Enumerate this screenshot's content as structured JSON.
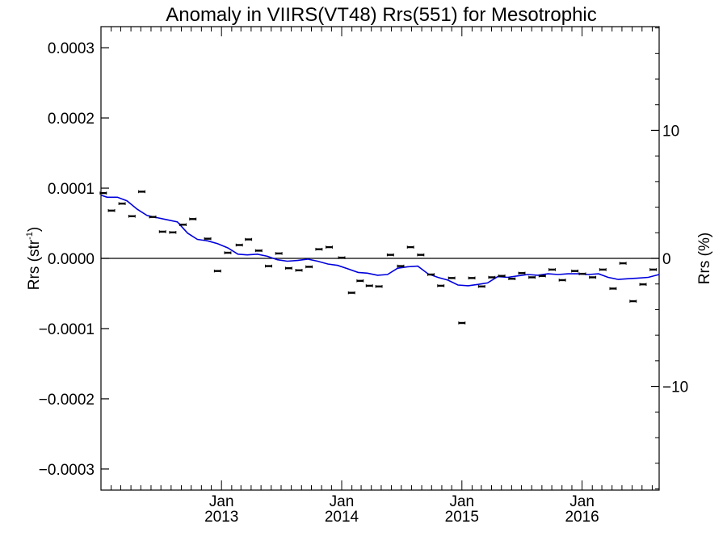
{
  "chart_data": {
    "type": "scatter",
    "title": "Anomaly in VIIRS(VT48) Rrs(551) for Mesotrophic",
    "ylabel": "Rrs (str",
    "ylabel_sup": "-1",
    "ylabel_close": ")",
    "y2label": "Rrs (%)",
    "xlim": [
      "2012-01-01",
      "2016-08-22"
    ],
    "ylim": [
      -0.00033,
      0.00033
    ],
    "y2lim": [
      -18.1,
      18.1
    ],
    "grid": false,
    "yticks": [
      {
        "value": 0.0003,
        "label": "0.0003"
      },
      {
        "value": 0.0002,
        "label": "0.0002"
      },
      {
        "value": 0.0001,
        "label": "0.0001"
      },
      {
        "value": 0.0,
        "label": "0.0000"
      },
      {
        "value": -0.0001,
        "label": "−0.0001"
      },
      {
        "value": -0.0002,
        "label": "−0.0002"
      },
      {
        "value": -0.0003,
        "label": "−0.0003"
      }
    ],
    "y2ticks": [
      {
        "value": 10,
        "label": "10"
      },
      {
        "value": 0,
        "label": "0"
      },
      {
        "value": -10,
        "label": "−10"
      }
    ],
    "xticks": [
      {
        "date": "2013-01-01",
        "month": "Jan",
        "year": "2013"
      },
      {
        "date": "2014-01-01",
        "month": "Jan",
        "year": "2014"
      },
      {
        "date": "2015-01-01",
        "month": "Jan",
        "year": "2015"
      },
      {
        "date": "2016-01-01",
        "month": "Jan",
        "year": "2016"
      }
    ],
    "reference_line": 0.0,
    "series": [
      {
        "type": "points",
        "color": "#000000",
        "points": [
          {
            "x": "2012-01-08",
            "y": 9.3e-05
          },
          {
            "x": "2012-02-02",
            "y": 6.8e-05
          },
          {
            "x": "2012-03-05",
            "y": 7.8e-05
          },
          {
            "x": "2012-04-04",
            "y": 6e-05
          },
          {
            "x": "2012-05-04",
            "y": 9.5e-05
          },
          {
            "x": "2012-06-06",
            "y": 5.9e-05
          },
          {
            "x": "2012-07-06",
            "y": 3.8e-05
          },
          {
            "x": "2012-08-06",
            "y": 3.7e-05
          },
          {
            "x": "2012-09-06",
            "y": 4.8e-05
          },
          {
            "x": "2012-10-06",
            "y": 5.6e-05
          },
          {
            "x": "2012-11-20",
            "y": 2.8e-05
          },
          {
            "x": "2012-12-20",
            "y": -1.8e-05
          },
          {
            "x": "2013-01-20",
            "y": 8e-06
          },
          {
            "x": "2013-02-24",
            "y": 1.9e-05
          },
          {
            "x": "2013-03-24",
            "y": 2.7e-05
          },
          {
            "x": "2013-04-24",
            "y": 1.1e-05
          },
          {
            "x": "2013-05-24",
            "y": -1.1e-05
          },
          {
            "x": "2013-06-24",
            "y": 7e-06
          },
          {
            "x": "2013-07-24",
            "y": -1.4e-05
          },
          {
            "x": "2013-08-24",
            "y": -1.7e-05
          },
          {
            "x": "2013-09-24",
            "y": -1.2e-05
          },
          {
            "x": "2013-10-24",
            "y": 1.3e-05
          },
          {
            "x": "2013-11-24",
            "y": 1.6e-05
          },
          {
            "x": "2014-01-01",
            "y": 1e-06
          },
          {
            "x": "2014-01-31",
            "y": -4.9e-05
          },
          {
            "x": "2014-02-26",
            "y": -3.2e-05
          },
          {
            "x": "2014-03-26",
            "y": -3.9e-05
          },
          {
            "x": "2014-04-24",
            "y": -4e-05
          },
          {
            "x": "2014-05-29",
            "y": 5e-06
          },
          {
            "x": "2014-06-29",
            "y": -1.1e-05
          },
          {
            "x": "2014-07-29",
            "y": 1.6e-05
          },
          {
            "x": "2014-08-29",
            "y": 5e-06
          },
          {
            "x": "2014-09-29",
            "y": -2.3e-05
          },
          {
            "x": "2014-10-29",
            "y": -3.9e-05
          },
          {
            "x": "2014-12-01",
            "y": -2.8e-05
          },
          {
            "x": "2015-01-01",
            "y": -9.2e-05
          },
          {
            "x": "2015-01-31",
            "y": -2.8e-05
          },
          {
            "x": "2015-03-02",
            "y": -4e-05
          },
          {
            "x": "2015-04-02",
            "y": -2.7e-05
          },
          {
            "x": "2015-05-02",
            "y": -2.5e-05
          },
          {
            "x": "2015-06-02",
            "y": -2.9e-05
          },
          {
            "x": "2015-07-02",
            "y": -2.1e-05
          },
          {
            "x": "2015-08-02",
            "y": -2.7e-05
          },
          {
            "x": "2015-09-02",
            "y": -2.5e-05
          },
          {
            "x": "2015-10-02",
            "y": -1.6e-05
          },
          {
            "x": "2015-11-02",
            "y": -3.1e-05
          },
          {
            "x": "2015-12-10",
            "y": -1.8e-05
          },
          {
            "x": "2016-01-02",
            "y": -2.2e-05
          },
          {
            "x": "2016-02-02",
            "y": -2.7e-05
          },
          {
            "x": "2016-03-04",
            "y": -1.6e-05
          },
          {
            "x": "2016-04-04",
            "y": -4.3e-05
          },
          {
            "x": "2016-05-04",
            "y": -7e-06
          },
          {
            "x": "2016-06-04",
            "y": -6.1e-05
          },
          {
            "x": "2016-07-04",
            "y": -3.7e-05
          },
          {
            "x": "2016-08-04",
            "y": -1.6e-05
          }
        ]
      },
      {
        "type": "line",
        "color": "#0000dd",
        "points": [
          {
            "x": "2012-01-01",
            "y": 9e-05
          },
          {
            "x": "2012-01-20",
            "y": 8.7e-05
          },
          {
            "x": "2012-02-20",
            "y": 8.7e-05
          },
          {
            "x": "2012-03-20",
            "y": 8.2e-05
          },
          {
            "x": "2012-04-20",
            "y": 7e-05
          },
          {
            "x": "2012-05-20",
            "y": 6.1e-05
          },
          {
            "x": "2012-06-20",
            "y": 5.8e-05
          },
          {
            "x": "2012-07-20",
            "y": 5.5e-05
          },
          {
            "x": "2012-08-20",
            "y": 5.2e-05
          },
          {
            "x": "2012-09-20",
            "y": 3.6e-05
          },
          {
            "x": "2012-10-20",
            "y": 2.7e-05
          },
          {
            "x": "2012-11-20",
            "y": 2.5e-05
          },
          {
            "x": "2012-12-20",
            "y": 2.1e-05
          },
          {
            "x": "2013-01-20",
            "y": 1.5e-05
          },
          {
            "x": "2013-02-20",
            "y": 6e-06
          },
          {
            "x": "2013-03-20",
            "y": 5e-06
          },
          {
            "x": "2013-04-20",
            "y": 6e-06
          },
          {
            "x": "2013-05-20",
            "y": 3e-06
          },
          {
            "x": "2013-06-20",
            "y": -2e-06
          },
          {
            "x": "2013-07-20",
            "y": -4e-06
          },
          {
            "x": "2013-08-20",
            "y": -3e-06
          },
          {
            "x": "2013-09-20",
            "y": -1e-06
          },
          {
            "x": "2013-10-20",
            "y": -4e-06
          },
          {
            "x": "2013-11-20",
            "y": -8e-06
          },
          {
            "x": "2013-12-20",
            "y": -1e-05
          },
          {
            "x": "2014-01-20",
            "y": -1.5e-05
          },
          {
            "x": "2014-02-20",
            "y": -2e-05
          },
          {
            "x": "2014-03-20",
            "y": -2.1e-05
          },
          {
            "x": "2014-04-20",
            "y": -2.4e-05
          },
          {
            "x": "2014-05-20",
            "y": -2.3e-05
          },
          {
            "x": "2014-06-20",
            "y": -1.4e-05
          },
          {
            "x": "2014-07-20",
            "y": -1.2e-05
          },
          {
            "x": "2014-08-20",
            "y": -1.1e-05
          },
          {
            "x": "2014-09-20",
            "y": -2.2e-05
          },
          {
            "x": "2014-10-20",
            "y": -2.7e-05
          },
          {
            "x": "2014-11-20",
            "y": -3.1e-05
          },
          {
            "x": "2014-12-20",
            "y": -3.8e-05
          },
          {
            "x": "2015-01-20",
            "y": -3.9e-05
          },
          {
            "x": "2015-02-20",
            "y": -3.7e-05
          },
          {
            "x": "2015-03-20",
            "y": -3.5e-05
          },
          {
            "x": "2015-04-20",
            "y": -2.6e-05
          },
          {
            "x": "2015-05-20",
            "y": -2.7e-05
          },
          {
            "x": "2015-06-20",
            "y": -2.5e-05
          },
          {
            "x": "2015-07-20",
            "y": -2.3e-05
          },
          {
            "x": "2015-08-20",
            "y": -2.4e-05
          },
          {
            "x": "2015-09-20",
            "y": -2.2e-05
          },
          {
            "x": "2015-10-20",
            "y": -2.3e-05
          },
          {
            "x": "2015-11-20",
            "y": -2.2e-05
          },
          {
            "x": "2015-12-20",
            "y": -2.2e-05
          },
          {
            "x": "2016-01-20",
            "y": -2.3e-05
          },
          {
            "x": "2016-02-20",
            "y": -2.2e-05
          },
          {
            "x": "2016-03-20",
            "y": -2.7e-05
          },
          {
            "x": "2016-04-20",
            "y": -3e-05
          },
          {
            "x": "2016-05-20",
            "y": -2.9e-05
          },
          {
            "x": "2016-06-20",
            "y": -2.8e-05
          },
          {
            "x": "2016-07-20",
            "y": -2.7e-05
          },
          {
            "x": "2016-08-22",
            "y": -2.3e-05
          }
        ]
      }
    ]
  }
}
